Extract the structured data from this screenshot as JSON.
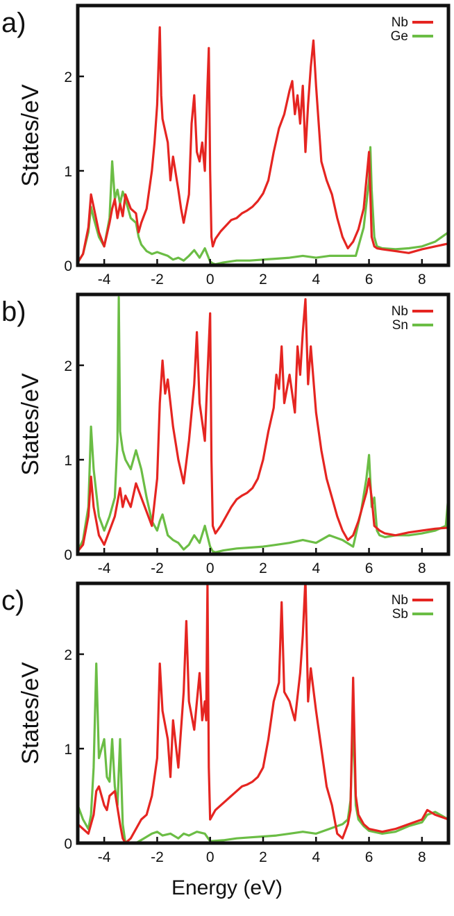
{
  "figure": {
    "xlabel": "Energy (eV)"
  },
  "colors": {
    "Nb": "#e52521",
    "Ge": "#6bbd45",
    "Sn": "#6bbd45",
    "Sb": "#6bbd45"
  },
  "chart_data": [
    {
      "type": "line",
      "panel_label": "a)",
      "ylabel": "States/eV",
      "xlim": [
        -5,
        9
      ],
      "ylim": [
        0,
        2.75
      ],
      "xticks": [
        -4,
        -2,
        0,
        2,
        4,
        6,
        8
      ],
      "yticks": [
        0,
        1,
        2
      ],
      "legend_position": "top-right",
      "series": [
        {
          "name": "Nb",
          "color": "#e52521",
          "x": [
            -5.0,
            -4.8,
            -4.6,
            -4.5,
            -4.4,
            -4.2,
            -4.0,
            -3.8,
            -3.7,
            -3.6,
            -3.5,
            -3.4,
            -3.3,
            -3.2,
            -3.0,
            -2.8,
            -2.7,
            -2.6,
            -2.4,
            -2.2,
            -2.1,
            -2.0,
            -1.9,
            -1.85,
            -1.8,
            -1.6,
            -1.5,
            -1.4,
            -1.2,
            -1.1,
            -1.0,
            -0.8,
            -0.7,
            -0.6,
            -0.55,
            -0.5,
            -0.4,
            -0.3,
            -0.2,
            -0.1,
            -0.05,
            0.0,
            0.05,
            0.1,
            0.2,
            0.4,
            0.6,
            0.8,
            1.0,
            1.2,
            1.4,
            1.6,
            1.8,
            2.0,
            2.2,
            2.4,
            2.6,
            2.8,
            3.0,
            3.1,
            3.2,
            3.3,
            3.4,
            3.5,
            3.6,
            3.7,
            3.8,
            3.9,
            4.0,
            4.1,
            4.2,
            4.4,
            4.6,
            4.8,
            5.0,
            5.2,
            5.4,
            5.6,
            5.8,
            6.0,
            6.05,
            6.1,
            6.2,
            6.3,
            6.5,
            7.0,
            7.5,
            8.0,
            8.5,
            9.0
          ],
          "y": [
            0.03,
            0.12,
            0.4,
            0.75,
            0.62,
            0.35,
            0.2,
            0.45,
            0.6,
            0.7,
            0.5,
            0.65,
            0.52,
            0.75,
            0.6,
            0.55,
            0.35,
            0.45,
            0.6,
            1.0,
            1.3,
            1.7,
            2.52,
            1.8,
            1.55,
            1.3,
            0.9,
            1.15,
            0.8,
            0.6,
            0.45,
            0.75,
            1.5,
            1.8,
            1.5,
            1.2,
            1.1,
            1.3,
            1.0,
            1.9,
            2.3,
            1.0,
            0.3,
            0.2,
            0.28,
            0.36,
            0.42,
            0.48,
            0.5,
            0.55,
            0.58,
            0.62,
            0.68,
            0.76,
            0.9,
            1.2,
            1.45,
            1.6,
            1.85,
            1.95,
            1.6,
            1.8,
            1.5,
            1.9,
            1.2,
            1.7,
            2.1,
            2.38,
            1.9,
            1.5,
            1.1,
            0.9,
            0.75,
            0.5,
            0.3,
            0.18,
            0.25,
            0.38,
            0.6,
            1.2,
            0.75,
            0.3,
            0.2,
            0.18,
            0.17,
            0.15,
            0.13,
            0.17,
            0.2,
            0.23
          ]
        },
        {
          "name": "Ge",
          "color": "#6bbd45",
          "x": [
            -5.0,
            -4.8,
            -4.6,
            -4.5,
            -4.4,
            -4.2,
            -4.0,
            -3.8,
            -3.7,
            -3.6,
            -3.5,
            -3.4,
            -3.3,
            -3.2,
            -3.0,
            -2.8,
            -2.7,
            -2.6,
            -2.4,
            -2.2,
            -2.0,
            -1.8,
            -1.6,
            -1.4,
            -1.2,
            -1.0,
            -0.8,
            -0.6,
            -0.4,
            -0.2,
            0.0,
            0.1,
            0.2,
            0.5,
            1.0,
            1.5,
            2.0,
            2.5,
            3.0,
            3.5,
            4.0,
            4.5,
            5.0,
            5.5,
            5.8,
            6.0,
            6.05,
            6.1,
            6.2,
            6.3,
            6.5,
            7.0,
            7.5,
            8.0,
            8.5,
            9.0
          ],
          "y": [
            0.03,
            0.12,
            0.35,
            0.62,
            0.5,
            0.3,
            0.2,
            0.5,
            1.1,
            0.7,
            0.8,
            0.65,
            0.78,
            0.7,
            0.5,
            0.45,
            0.3,
            0.22,
            0.15,
            0.12,
            0.14,
            0.12,
            0.1,
            0.06,
            0.08,
            0.05,
            0.1,
            0.16,
            0.08,
            0.18,
            0.04,
            0.02,
            0.01,
            0.03,
            0.05,
            0.05,
            0.06,
            0.07,
            0.08,
            0.1,
            0.08,
            0.1,
            0.1,
            0.1,
            0.4,
            0.9,
            1.25,
            0.8,
            0.3,
            0.2,
            0.18,
            0.17,
            0.18,
            0.2,
            0.25,
            0.35
          ]
        }
      ]
    },
    {
      "type": "line",
      "panel_label": "b)",
      "ylabel": "States/eV",
      "xlim": [
        -5,
        9
      ],
      "ylim": [
        0,
        2.75
      ],
      "xticks": [
        -4,
        -2,
        0,
        2,
        4,
        6,
        8
      ],
      "yticks": [
        0,
        1,
        2
      ],
      "legend_position": "top-right",
      "series": [
        {
          "name": "Nb",
          "color": "#e52521",
          "x": [
            -5.0,
            -4.8,
            -4.6,
            -4.5,
            -4.4,
            -4.2,
            -4.0,
            -3.8,
            -3.6,
            -3.4,
            -3.3,
            -3.2,
            -3.0,
            -2.8,
            -2.6,
            -2.4,
            -2.2,
            -2.0,
            -1.9,
            -1.8,
            -1.7,
            -1.6,
            -1.4,
            -1.2,
            -1.0,
            -0.8,
            -0.6,
            -0.5,
            -0.4,
            -0.3,
            -0.2,
            -0.1,
            0.0,
            0.05,
            0.1,
            0.2,
            0.4,
            0.6,
            0.8,
            1.0,
            1.2,
            1.4,
            1.6,
            1.8,
            2.0,
            2.2,
            2.4,
            2.5,
            2.6,
            2.7,
            2.8,
            3.0,
            3.2,
            3.3,
            3.4,
            3.5,
            3.6,
            3.7,
            3.8,
            4.0,
            4.2,
            4.4,
            4.6,
            4.8,
            5.0,
            5.2,
            5.4,
            5.6,
            5.8,
            5.9,
            6.0,
            6.1,
            6.2,
            6.4,
            6.6,
            7.0,
            7.5,
            8.0,
            8.5,
            9.0
          ],
          "y": [
            0.03,
            0.1,
            0.4,
            0.82,
            0.5,
            0.2,
            0.1,
            0.25,
            0.4,
            0.7,
            0.5,
            0.62,
            0.5,
            0.75,
            0.6,
            0.45,
            0.3,
            0.8,
            1.6,
            2.05,
            1.7,
            1.85,
            1.35,
            1.0,
            0.75,
            1.2,
            1.8,
            2.35,
            1.6,
            1.4,
            1.2,
            1.9,
            2.55,
            1.0,
            0.3,
            0.22,
            0.3,
            0.4,
            0.5,
            0.58,
            0.62,
            0.65,
            0.7,
            0.8,
            1.0,
            1.3,
            1.55,
            1.9,
            1.75,
            2.2,
            1.6,
            1.9,
            1.5,
            2.2,
            1.9,
            2.35,
            2.7,
            1.8,
            2.2,
            1.5,
            1.1,
            0.8,
            0.6,
            0.4,
            0.25,
            0.15,
            0.2,
            0.35,
            0.55,
            0.65,
            0.8,
            0.6,
            0.3,
            0.25,
            0.22,
            0.2,
            0.23,
            0.25,
            0.27,
            0.28
          ]
        },
        {
          "name": "Sn",
          "color": "#6bbd45",
          "x": [
            -5.0,
            -4.8,
            -4.6,
            -4.5,
            -4.4,
            -4.2,
            -4.0,
            -3.8,
            -3.6,
            -3.5,
            -3.45,
            -3.4,
            -3.3,
            -3.2,
            -3.0,
            -2.8,
            -2.6,
            -2.4,
            -2.2,
            -2.0,
            -1.9,
            -1.8,
            -1.6,
            -1.4,
            -1.2,
            -1.0,
            -0.8,
            -0.6,
            -0.4,
            -0.2,
            0.0,
            0.1,
            0.2,
            0.5,
            1.0,
            1.5,
            2.0,
            2.5,
            3.0,
            3.5,
            4.0,
            4.5,
            5.0,
            5.4,
            5.7,
            5.9,
            6.0,
            6.1,
            6.2,
            6.3,
            6.4,
            6.6,
            7.0,
            7.5,
            8.0,
            8.5,
            8.9,
            9.0
          ],
          "y": [
            0.03,
            0.15,
            0.5,
            1.35,
            0.9,
            0.4,
            0.25,
            0.4,
            0.6,
            1.2,
            2.72,
            1.3,
            1.1,
            1.0,
            0.9,
            1.1,
            0.9,
            0.6,
            0.35,
            0.25,
            0.35,
            0.42,
            0.2,
            0.15,
            0.12,
            0.05,
            0.1,
            0.2,
            0.12,
            0.3,
            0.08,
            0.03,
            0.02,
            0.04,
            0.06,
            0.07,
            0.08,
            0.1,
            0.12,
            0.15,
            0.12,
            0.2,
            0.15,
            0.08,
            0.45,
            0.8,
            1.05,
            0.5,
            0.6,
            0.25,
            0.2,
            0.18,
            0.2,
            0.2,
            0.22,
            0.25,
            0.3,
            0.62
          ]
        }
      ]
    },
    {
      "type": "line",
      "panel_label": "c)",
      "ylabel": "States/eV",
      "xlim": [
        -5,
        9
      ],
      "ylim": [
        0,
        2.75
      ],
      "xticks": [
        -4,
        -2,
        0,
        2,
        4,
        6,
        8
      ],
      "yticks": [
        0,
        1,
        2
      ],
      "legend_position": "top-right",
      "series": [
        {
          "name": "Nb",
          "color": "#e52521",
          "x": [
            -5.0,
            -4.8,
            -4.6,
            -4.4,
            -4.3,
            -4.2,
            -4.0,
            -3.9,
            -3.8,
            -3.6,
            -3.4,
            -3.3,
            -3.2,
            -3.0,
            -2.8,
            -2.6,
            -2.4,
            -2.2,
            -2.0,
            -1.9,
            -1.8,
            -1.6,
            -1.5,
            -1.4,
            -1.2,
            -1.0,
            -0.9,
            -0.8,
            -0.6,
            -0.4,
            -0.3,
            -0.2,
            -0.15,
            -0.1,
            -0.05,
            0.0,
            0.1,
            0.2,
            0.4,
            0.6,
            0.8,
            1.0,
            1.2,
            1.4,
            1.6,
            1.8,
            2.0,
            2.2,
            2.4,
            2.6,
            2.7,
            2.8,
            3.0,
            3.2,
            3.4,
            3.5,
            3.6,
            3.7,
            3.8,
            4.0,
            4.2,
            4.4,
            4.6,
            4.8,
            5.0,
            5.2,
            5.3,
            5.4,
            5.5,
            5.6,
            5.8,
            6.0,
            6.5,
            7.0,
            7.5,
            8.0,
            8.2,
            8.5,
            9.0
          ],
          "y": [
            0.2,
            0.15,
            0.1,
            0.3,
            0.55,
            0.6,
            0.4,
            0.35,
            0.5,
            0.55,
            0.2,
            0.05,
            0.0,
            0.05,
            0.15,
            0.25,
            0.3,
            0.5,
            0.9,
            1.9,
            1.4,
            1.1,
            0.7,
            1.3,
            0.8,
            1.6,
            2.35,
            1.5,
            1.2,
            1.8,
            1.3,
            1.5,
            1.3,
            2.75,
            0.8,
            0.25,
            0.3,
            0.35,
            0.4,
            0.45,
            0.5,
            0.55,
            0.6,
            0.62,
            0.65,
            0.7,
            0.8,
            1.1,
            1.5,
            1.7,
            2.55,
            1.6,
            1.5,
            1.3,
            1.8,
            2.2,
            2.8,
            1.5,
            1.85,
            1.4,
            1.0,
            0.6,
            0.4,
            0.1,
            0.05,
            0.2,
            0.35,
            1.75,
            0.5,
            0.3,
            0.2,
            0.15,
            0.12,
            0.15,
            0.2,
            0.25,
            0.35,
            0.3,
            0.25
          ]
        },
        {
          "name": "Sb",
          "color": "#6bbd45",
          "x": [
            -5.0,
            -4.8,
            -4.6,
            -4.5,
            -4.4,
            -4.3,
            -4.2,
            -4.0,
            -3.9,
            -3.8,
            -3.7,
            -3.6,
            -3.5,
            -3.4,
            -3.3,
            -3.2,
            -3.0,
            -2.8,
            -2.5,
            -2.2,
            -2.0,
            -1.8,
            -1.5,
            -1.2,
            -1.0,
            -0.8,
            -0.5,
            -0.2,
            0.0,
            0.5,
            1.0,
            1.5,
            2.0,
            2.5,
            3.0,
            3.5,
            4.0,
            4.5,
            5.0,
            5.2,
            5.3,
            5.4,
            5.5,
            5.6,
            5.8,
            6.0,
            6.5,
            7.0,
            7.5,
            8.0,
            8.2,
            8.5,
            9.0
          ],
          "y": [
            0.4,
            0.25,
            0.15,
            0.3,
            0.8,
            1.9,
            0.9,
            1.1,
            0.7,
            0.65,
            1.1,
            0.6,
            0.4,
            1.1,
            0.2,
            0.0,
            0.0,
            0.0,
            0.05,
            0.1,
            0.12,
            0.08,
            0.1,
            0.05,
            0.1,
            0.08,
            0.12,
            0.1,
            0.02,
            0.03,
            0.05,
            0.06,
            0.07,
            0.08,
            0.1,
            0.12,
            0.1,
            0.15,
            0.2,
            0.25,
            0.45,
            1.3,
            0.4,
            0.25,
            0.18,
            0.13,
            0.1,
            0.12,
            0.18,
            0.22,
            0.3,
            0.33,
            0.25
          ]
        }
      ]
    }
  ]
}
